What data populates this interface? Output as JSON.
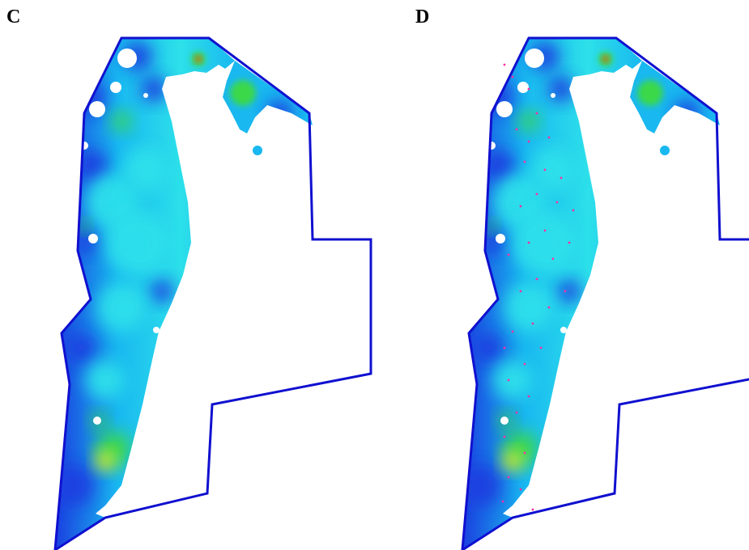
{
  "figure": {
    "panels": [
      {
        "label": "C",
        "show_sample_points": false
      },
      {
        "label": "D",
        "show_sample_points": true
      }
    ]
  },
  "colors": {
    "boundary": "#1010d0",
    "low": "#1a3fe0",
    "mid": "#19b8f0",
    "cyan": "#2de0ea",
    "high_green": "#3bd84a",
    "high_yellow": "#f4f01c",
    "peak_red": "#f0501c",
    "sample_points": "#ff2fa0",
    "background": "#ffffff"
  }
}
